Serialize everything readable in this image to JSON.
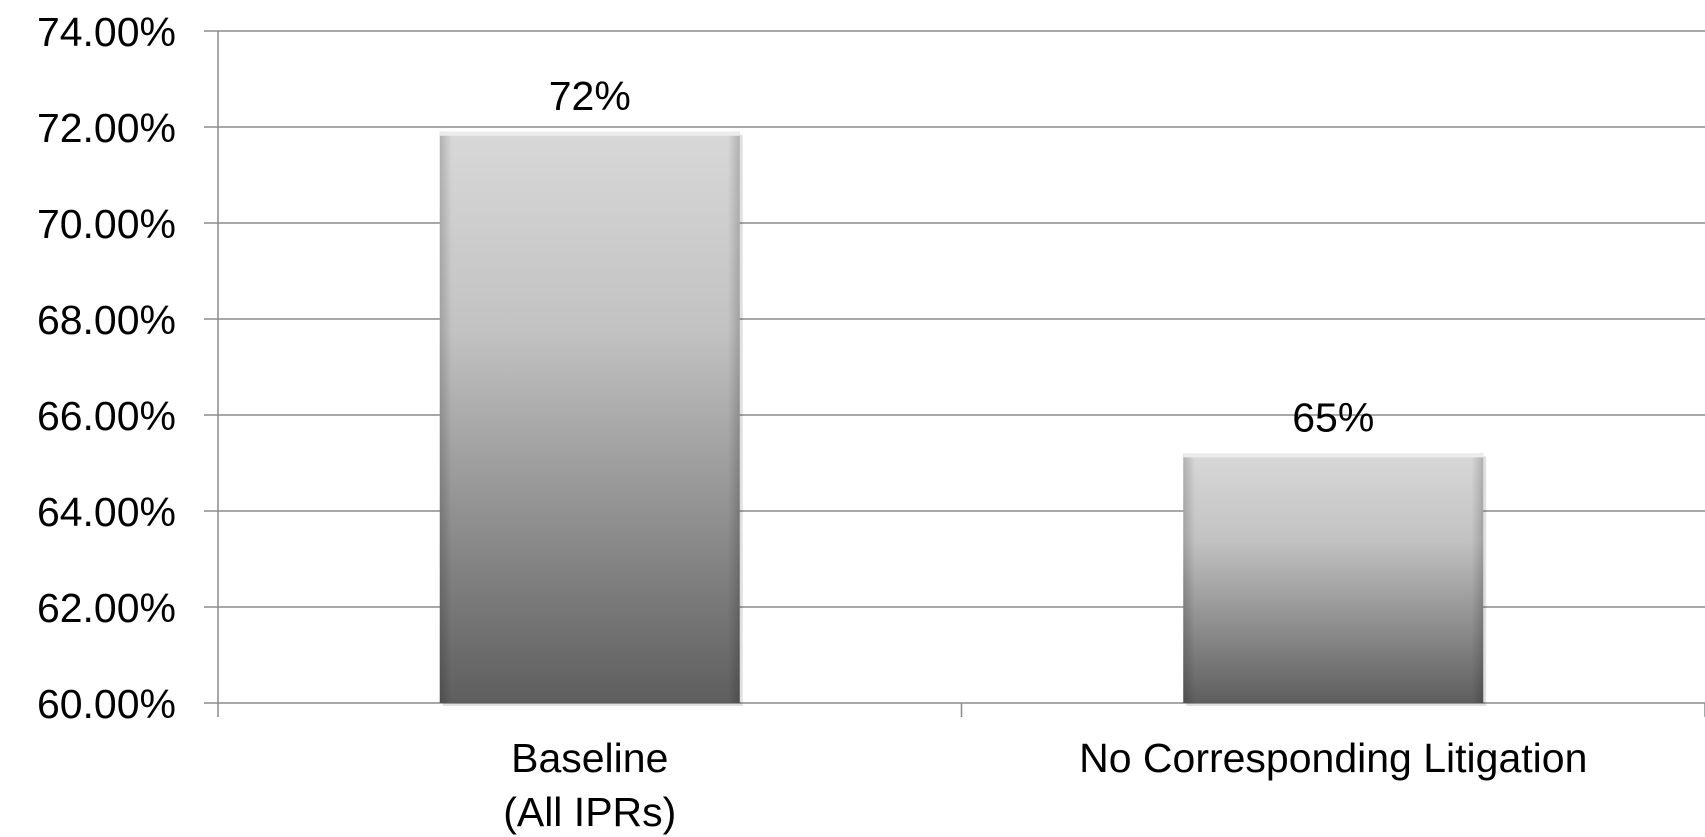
{
  "chart_data": {
    "type": "bar",
    "title": "",
    "xlabel": "",
    "ylabel": "",
    "categories": [
      [
        "Baseline",
        "(All IPRs)"
      ],
      [
        "No Corresponding Litigation"
      ]
    ],
    "values": [
      71.9,
      65.2
    ],
    "data_labels": [
      "72%",
      "65%"
    ],
    "ylim": [
      60,
      74
    ],
    "y_ticks": [
      {
        "value": 74,
        "label": "74.00%"
      },
      {
        "value": 72,
        "label": "72.00%"
      },
      {
        "value": 70,
        "label": "70.00%"
      },
      {
        "value": 68,
        "label": "68.00%"
      },
      {
        "value": 66,
        "label": "66.00%"
      },
      {
        "value": 64,
        "label": "64.00%"
      },
      {
        "value": 62,
        "label": "62.00%"
      },
      {
        "value": 60,
        "label": "60.00%"
      }
    ],
    "grid": true,
    "legend": "none",
    "colors": {
      "bar_top": "#d8d8d8",
      "bar_bottom": "#5e5e5e",
      "grid": "#8c8c8c",
      "axis": "#8c8c8c",
      "text": "#000000"
    }
  }
}
